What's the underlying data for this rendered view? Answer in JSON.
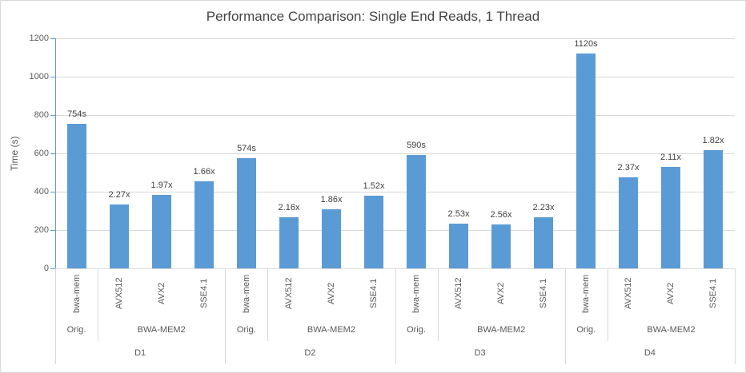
{
  "chart_data": {
    "type": "bar",
    "title": "Performance Comparison: Single End Reads, 1 Thread",
    "xlabel": "",
    "ylabel": "Time (s)",
    "ylim": [
      0,
      1200
    ],
    "yticks": [
      0,
      200,
      400,
      600,
      800,
      1000,
      1200
    ],
    "grid": true,
    "legend": "none",
    "colors": {
      "bar": "#5b9bd5",
      "axis_line": "#5b9bd5",
      "gridline": "#d9d9d9",
      "axis_text": "#595959",
      "data_label_text": "#404040",
      "title_text": "#444444"
    },
    "groups": [
      {
        "dataset": "D1",
        "subgroups": [
          "Orig.",
          "BWA-MEM2"
        ],
        "bars": [
          {
            "category": "bwa-mem",
            "subgroup": "Orig.",
            "time_s": 754,
            "label": "754s"
          },
          {
            "category": "AVX512",
            "subgroup": "BWA-MEM2",
            "time_s": 332,
            "label": "2.27x"
          },
          {
            "category": "AVX2",
            "subgroup": "BWA-MEM2",
            "time_s": 383,
            "label": "1.97x"
          },
          {
            "category": "SSE4.1",
            "subgroup": "BWA-MEM2",
            "time_s": 454,
            "label": "1.66x"
          }
        ]
      },
      {
        "dataset": "D2",
        "subgroups": [
          "Orig.",
          "BWA-MEM2"
        ],
        "bars": [
          {
            "category": "bwa-mem",
            "subgroup": "Orig.",
            "time_s": 574,
            "label": "574s"
          },
          {
            "category": "AVX512",
            "subgroup": "BWA-MEM2",
            "time_s": 266,
            "label": "2.16x"
          },
          {
            "category": "AVX2",
            "subgroup": "BWA-MEM2",
            "time_s": 309,
            "label": "1.86x"
          },
          {
            "category": "SSE4.1",
            "subgroup": "BWA-MEM2",
            "time_s": 378,
            "label": "1.52x"
          }
        ]
      },
      {
        "dataset": "D3",
        "subgroups": [
          "Orig.",
          "BWA-MEM2"
        ],
        "bars": [
          {
            "category": "bwa-mem",
            "subgroup": "Orig.",
            "time_s": 590,
            "label": "590s"
          },
          {
            "category": "AVX512",
            "subgroup": "BWA-MEM2",
            "time_s": 233,
            "label": "2.53x"
          },
          {
            "category": "AVX2",
            "subgroup": "BWA-MEM2",
            "time_s": 230,
            "label": "2.56x"
          },
          {
            "category": "SSE4.1",
            "subgroup": "BWA-MEM2",
            "time_s": 265,
            "label": "2.23x"
          }
        ]
      },
      {
        "dataset": "D4",
        "subgroups": [
          "Orig.",
          "BWA-MEM2"
        ],
        "bars": [
          {
            "category": "bwa-mem",
            "subgroup": "Orig.",
            "time_s": 1120,
            "label": "1120s"
          },
          {
            "category": "AVX512",
            "subgroup": "BWA-MEM2",
            "time_s": 473,
            "label": "2.37x"
          },
          {
            "category": "AVX2",
            "subgroup": "BWA-MEM2",
            "time_s": 531,
            "label": "2.11x"
          },
          {
            "category": "SSE4.1",
            "subgroup": "BWA-MEM2",
            "time_s": 615,
            "label": "1.82x"
          }
        ]
      }
    ]
  }
}
